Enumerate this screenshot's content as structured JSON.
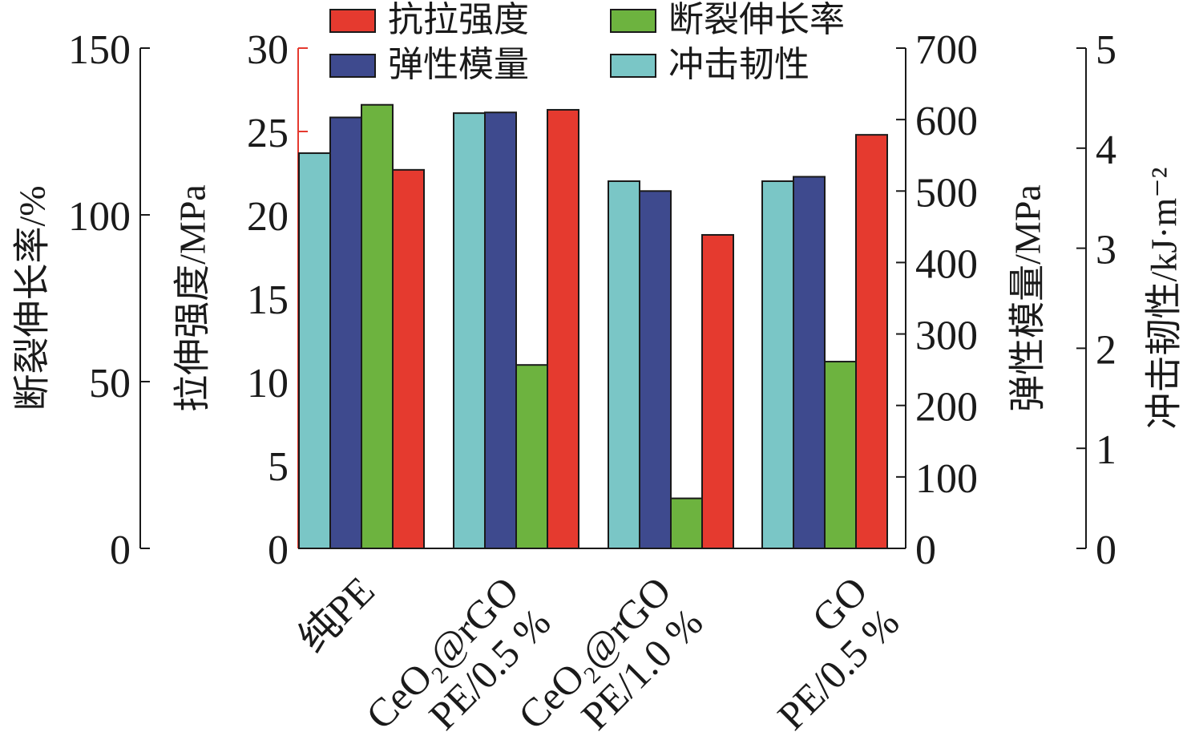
{
  "chart_data": {
    "type": "bar",
    "categories": [
      {
        "lines": [
          "纯PE"
        ]
      },
      {
        "lines": [
          "PE/0.5 %",
          "CeO₂@rGO"
        ]
      },
      {
        "lines": [
          "PE/1.0 %",
          "CeO₂@rGO"
        ]
      },
      {
        "lines": [
          "PE/0.5 %",
          "GO"
        ]
      }
    ],
    "series": [
      {
        "name": "冲击韧性",
        "color": "#7ac6c6",
        "axis": "toughness",
        "values": [
          3.95,
          4.35,
          3.67,
          3.67
        ]
      },
      {
        "name": "弹性模量",
        "color": "#3e4a8e",
        "axis": "modulus",
        "values": [
          603,
          610,
          500,
          520
        ]
      },
      {
        "name": "断裂伸长率",
        "color": "#6db33f",
        "axis": "elongation",
        "values": [
          133,
          55,
          15,
          56
        ]
      },
      {
        "name": "抗拉强度",
        "color": "#e53a2f",
        "axis": "tensile",
        "values": [
          22.7,
          26.3,
          18.8,
          24.8
        ]
      }
    ],
    "axes": {
      "elongation": {
        "label": "断裂伸长率/%",
        "ylim": [
          0,
          150
        ],
        "ticks": [
          "0",
          "50",
          "100",
          "150"
        ],
        "color": "#1a1a1a"
      },
      "tensile": {
        "label": "拉伸强度/MPa",
        "ylim": [
          0,
          30
        ],
        "ticks": [
          "0",
          "5",
          "10",
          "15",
          "20",
          "25",
          "30"
        ],
        "color": "#e53a2f"
      },
      "modulus": {
        "label": "弹性模量/MPa",
        "ylim": [
          0,
          700
        ],
        "ticks": [
          "0",
          "100",
          "200",
          "300",
          "400",
          "500",
          "600",
          "700"
        ],
        "color": "#1a1a1a"
      },
      "toughness": {
        "label": "冲击韧性/kJ·m⁻²",
        "ylim": [
          0,
          5
        ],
        "ticks": [
          "0",
          "1",
          "2",
          "3",
          "4",
          "5"
        ],
        "color": "#1a1a1a"
      }
    },
    "legend": {
      "placement": "top",
      "entries": [
        {
          "name": "抗拉强度",
          "color": "#e53a2f"
        },
        {
          "name": "断裂伸长率",
          "color": "#6db33f"
        },
        {
          "name": "弹性模量",
          "color": "#3e4a8e"
        },
        {
          "name": "冲击韧性",
          "color": "#7ac6c6"
        }
      ]
    }
  }
}
